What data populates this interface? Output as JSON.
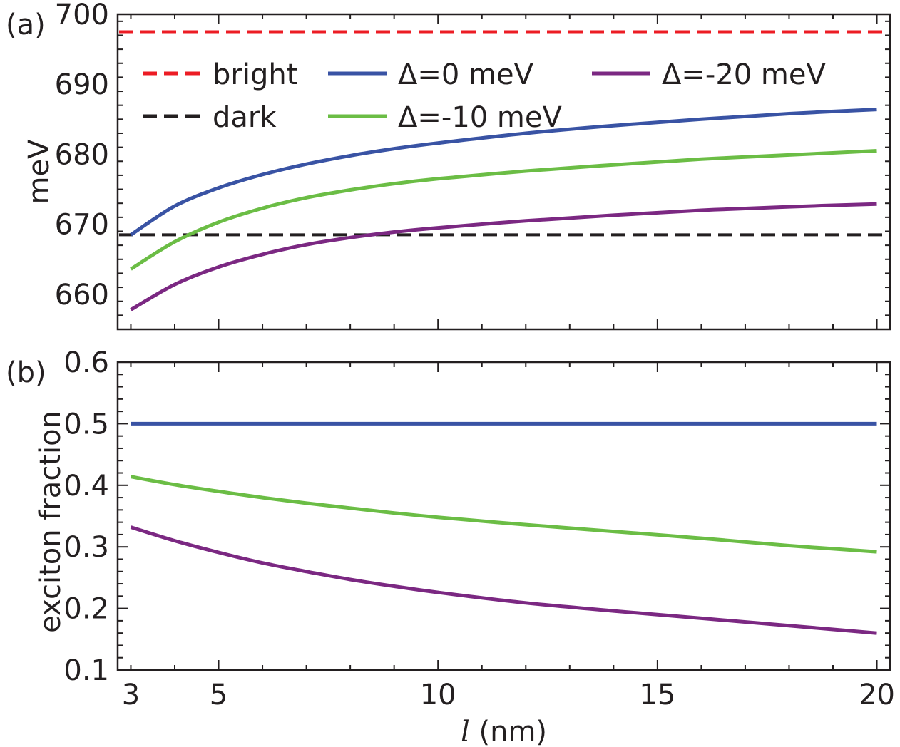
{
  "chart_data": [
    {
      "panel_label": "(a)",
      "type": "line",
      "title": "",
      "xlabel": "",
      "ylabel": "meV",
      "xlim": [
        2.7,
        20.3
      ],
      "ylim": [
        655,
        700
      ],
      "yticks": [
        660,
        670,
        680,
        690,
        700
      ],
      "grid": false,
      "legend_placement": "top",
      "reference_lines": [
        {
          "name": "bright",
          "y": 697.5,
          "color": "#ec1c24",
          "dash": "dashed"
        },
        {
          "name": "dark",
          "y": 668.5,
          "color": "#231f20",
          "dash": "dashed"
        }
      ],
      "series": [
        {
          "name": "Δ=0 meV",
          "color": "#3953a4",
          "x": [
            3,
            4,
            5,
            6,
            7,
            8,
            9,
            10,
            12,
            14,
            16,
            18,
            20
          ],
          "y": [
            668.5,
            672.6,
            675.2,
            677.1,
            678.6,
            679.8,
            680.8,
            681.6,
            683.0,
            684.1,
            685.0,
            685.8,
            686.4
          ]
        },
        {
          "name": "Δ=-10 meV",
          "color": "#6bbd45",
          "x": [
            3,
            4,
            5,
            6,
            7,
            8,
            9,
            10,
            12,
            14,
            16,
            18,
            20
          ],
          "y": [
            663.6,
            667.5,
            670.3,
            672.3,
            673.8,
            674.9,
            675.8,
            676.5,
            677.6,
            678.5,
            679.3,
            679.9,
            680.5
          ]
        },
        {
          "name": "Δ=-20 meV",
          "color": "#7b2882",
          "x": [
            3,
            4,
            5,
            6,
            7,
            8,
            9,
            10,
            12,
            14,
            16,
            18,
            20
          ],
          "y": [
            657.8,
            661.4,
            663.9,
            665.7,
            667.1,
            668.1,
            668.9,
            669.5,
            670.5,
            671.3,
            672.0,
            672.5,
            672.9
          ]
        }
      ]
    },
    {
      "panel_label": "(b)",
      "type": "line",
      "title": "",
      "xlabel": "l (nm)",
      "xlabel_var": "l",
      "xlabel_unit": " (nm)",
      "ylabel": "exciton fraction",
      "xlim": [
        2.7,
        20.3
      ],
      "ylim": [
        0.1,
        0.6
      ],
      "xticks": [
        3,
        5,
        10,
        15,
        20
      ],
      "yticks": [
        0.1,
        0.2,
        0.3,
        0.4,
        0.5,
        0.6
      ],
      "ytick_labels": [
        "0.1",
        "0.2",
        "0.3",
        "0.4",
        "0.5",
        "0.6"
      ],
      "grid": false,
      "series": [
        {
          "name": "Δ=0 meV",
          "color": "#3953a4",
          "x": [
            3,
            5,
            10,
            15,
            20
          ],
          "y": [
            0.5,
            0.5,
            0.5,
            0.5,
            0.5
          ]
        },
        {
          "name": "Δ=-10 meV",
          "color": "#6bbd45",
          "x": [
            3,
            4,
            5,
            6,
            7,
            8,
            9,
            10,
            12,
            14,
            16,
            18,
            20
          ],
          "y": [
            0.414,
            0.401,
            0.39,
            0.38,
            0.371,
            0.363,
            0.355,
            0.348,
            0.336,
            0.325,
            0.314,
            0.302,
            0.292
          ]
        },
        {
          "name": "Δ=-20 meV",
          "color": "#7b2882",
          "x": [
            3,
            4,
            5,
            6,
            7,
            8,
            9,
            10,
            12,
            14,
            16,
            18,
            20
          ],
          "y": [
            0.332,
            0.31,
            0.291,
            0.274,
            0.26,
            0.247,
            0.236,
            0.226,
            0.209,
            0.196,
            0.184,
            0.172,
            0.16
          ]
        }
      ]
    }
  ]
}
